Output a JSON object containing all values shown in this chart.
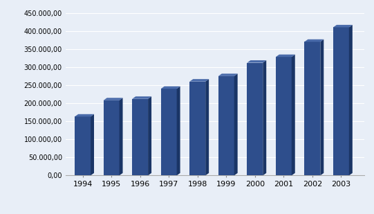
{
  "categories": [
    "1994",
    "1995",
    "1996",
    "1997",
    "1998",
    "1999",
    "2000",
    "2001",
    "2002",
    "2003"
  ],
  "values": [
    163000,
    208000,
    212000,
    240000,
    260000,
    275000,
    312000,
    328000,
    370000,
    410000
  ],
  "bar_color_face": "#2E4E8C",
  "bar_color_side": "#1A3566",
  "bar_color_top": "#4A6BAA",
  "background_color": "#E8EEF7",
  "plot_bg_color": "#E8EEF7",
  "grid_color": "#FFFFFF",
  "floor_color": "#C8D4E8",
  "ylim": [
    0,
    450000
  ],
  "yticks": [
    0,
    50000,
    100000,
    150000,
    200000,
    250000,
    300000,
    350000,
    400000,
    450000
  ],
  "tick_fontsize": 7,
  "xlabel_fontsize": 8
}
